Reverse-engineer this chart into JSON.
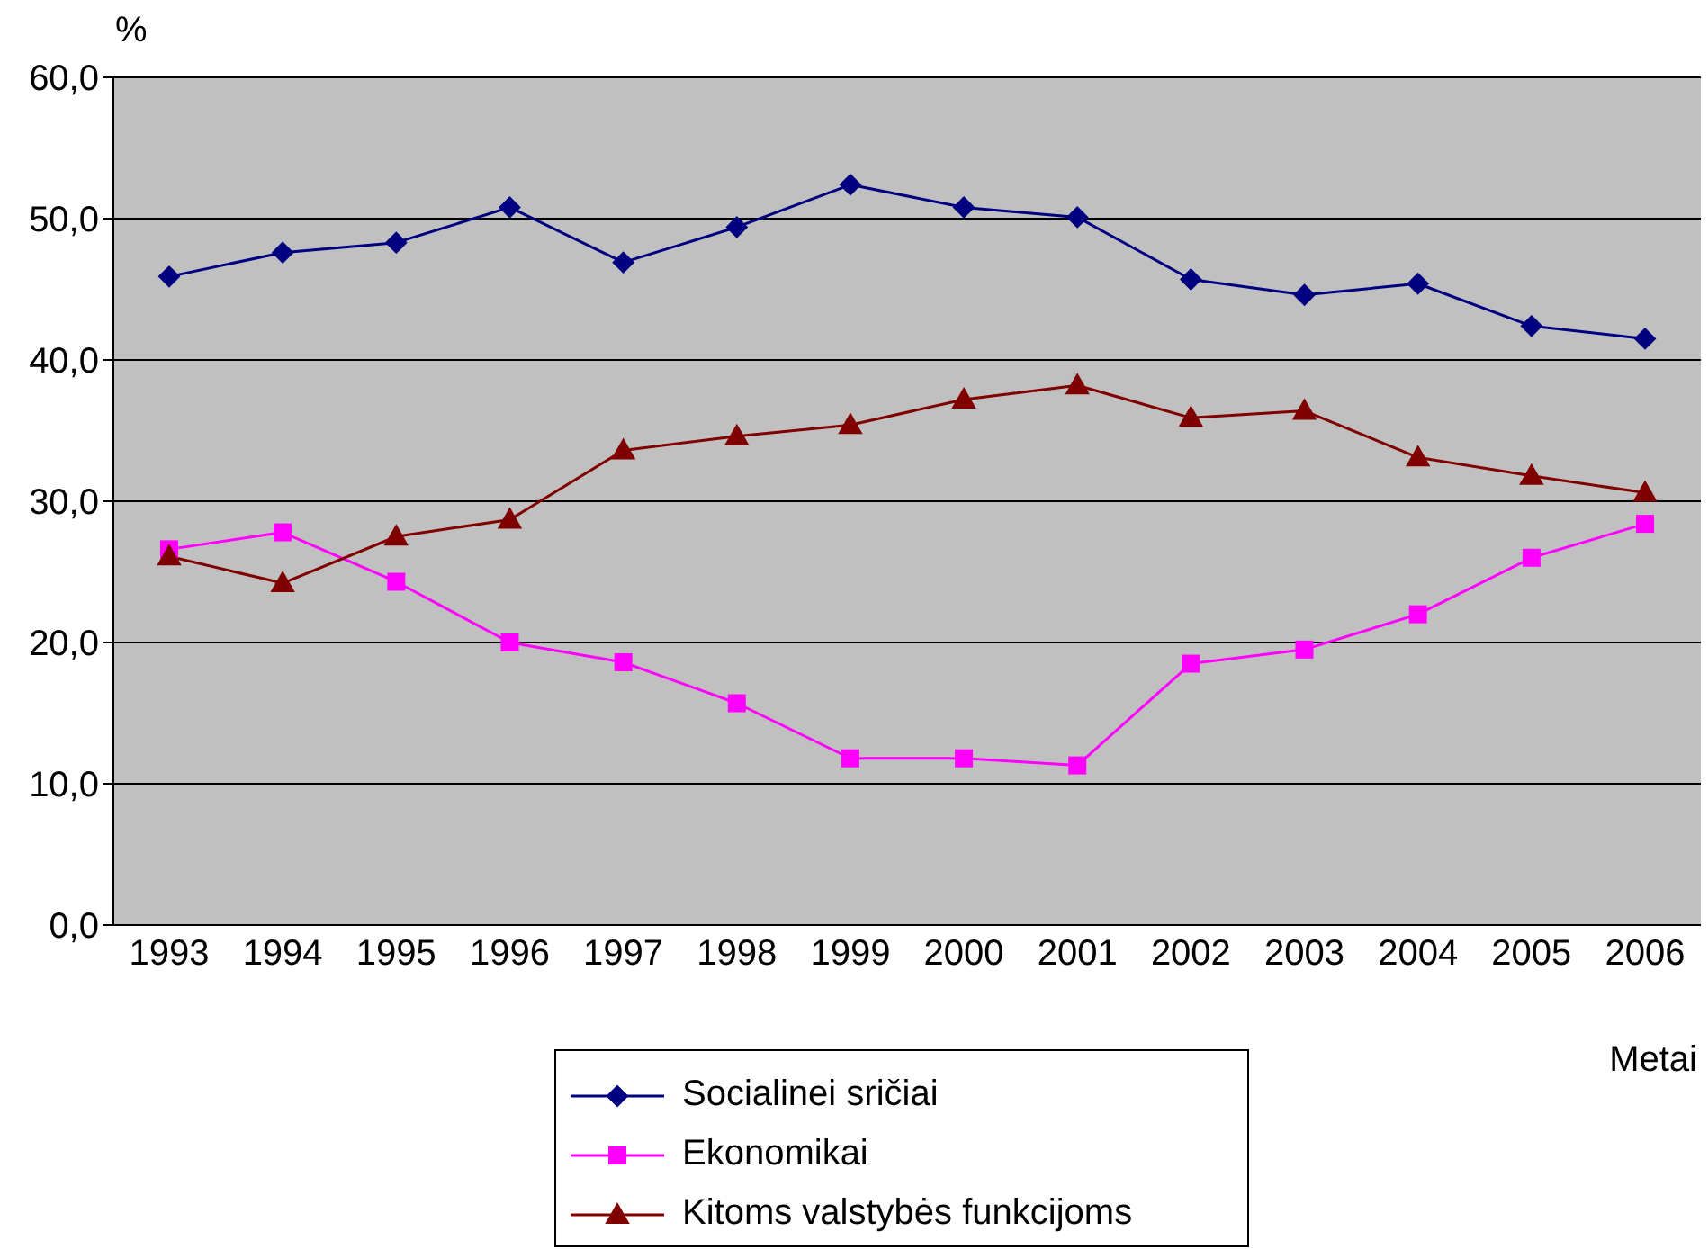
{
  "chart_data": {
    "type": "line",
    "xlabel": "Metai",
    "ylabel": "%",
    "categories": [
      "1993",
      "1994",
      "1995",
      "1996",
      "1997",
      "1998",
      "1999",
      "2000",
      "2001",
      "2002",
      "2003",
      "2004",
      "2005",
      "2006"
    ],
    "series": [
      {
        "name": "Socialinei sričiai",
        "color": "#000080",
        "marker": "diamond",
        "values": [
          45.9,
          47.6,
          48.3,
          50.8,
          46.9,
          49.4,
          52.4,
          50.8,
          50.1,
          45.7,
          44.6,
          45.4,
          42.4,
          41.5
        ]
      },
      {
        "name": "Ekonomikai",
        "color": "#ff00ff",
        "marker": "square",
        "values": [
          26.6,
          27.8,
          24.3,
          20.0,
          18.6,
          15.7,
          11.8,
          11.8,
          11.3,
          18.5,
          19.5,
          22.0,
          26.0,
          28.4
        ]
      },
      {
        "name": "Kitoms valstybės funkcijoms",
        "color": "#800000",
        "marker": "triangle",
        "values": [
          26.1,
          24.2,
          27.5,
          28.7,
          33.6,
          34.6,
          35.4,
          37.2,
          38.2,
          35.9,
          36.4,
          33.1,
          31.8,
          30.6
        ]
      }
    ],
    "ylim": [
      0,
      60
    ],
    "yticks": [
      {
        "value": 0,
        "label": "0,0"
      },
      {
        "value": 10,
        "label": "10,0"
      },
      {
        "value": 20,
        "label": "20,0"
      },
      {
        "value": 30,
        "label": "30,0"
      },
      {
        "value": 40,
        "label": "40,0"
      },
      {
        "value": 50,
        "label": "50,0"
      },
      {
        "value": 60,
        "label": "60,0"
      }
    ],
    "grid": "y",
    "legend": "bottom"
  }
}
